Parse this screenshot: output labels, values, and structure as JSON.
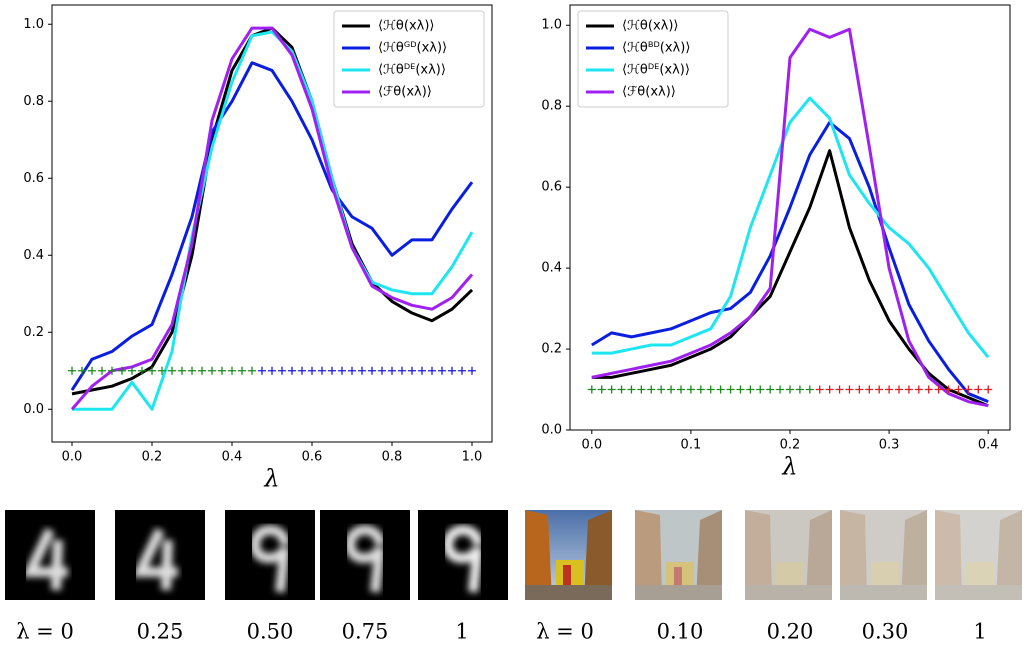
{
  "chart_data": [
    {
      "type": "line",
      "xlabel": "λ",
      "legend": "upper right",
      "xlim": [
        -0.05,
        1.05
      ],
      "ylim": [
        -0.085,
        1.05
      ],
      "xticks": [
        {
          "value": 0,
          "label": "0.0"
        },
        0.2,
        0.4,
        0.6,
        0.8,
        {
          "value": 1,
          "label": "1.0"
        }
      ],
      "yticks": [
        {
          "value": 0,
          "label": "0.0"
        },
        0.2,
        0.4,
        0.6,
        0.8,
        {
          "value": 1,
          "label": "1.0"
        }
      ],
      "x": [
        0,
        0.05,
        0.1,
        0.15,
        0.2,
        0.25,
        0.3,
        0.35,
        0.4,
        0.45,
        0.5,
        0.55,
        0.6,
        0.65,
        0.7,
        0.75,
        0.8,
        0.85,
        0.9,
        0.95,
        1
      ],
      "series": [
        {
          "name": "⟨ℋθ(xλ)⟩",
          "color": "#000000",
          "values": [
            0.04,
            0.05,
            0.06,
            0.08,
            0.11,
            0.2,
            0.4,
            0.7,
            0.88,
            0.97,
            0.99,
            0.94,
            0.8,
            0.6,
            0.43,
            0.33,
            0.28,
            0.25,
            0.23,
            0.26,
            0.31
          ]
        },
        {
          "name": "⟨ℋθᴳᴰ(xλ)⟩",
          "color": "#0a1ee0",
          "values": [
            0.05,
            0.13,
            0.15,
            0.19,
            0.22,
            0.35,
            0.5,
            0.72,
            0.8,
            0.9,
            0.88,
            0.8,
            0.7,
            0.57,
            0.5,
            0.47,
            0.4,
            0.44,
            0.44,
            0.52,
            0.59
          ]
        },
        {
          "name": "⟨ℋθᴰᴱ(xλ)⟩",
          "color": "#1ee6f0",
          "values": [
            0,
            0,
            0,
            0.07,
            0,
            0.15,
            0.45,
            0.68,
            0.85,
            0.97,
            0.98,
            0.93,
            0.8,
            0.6,
            0.42,
            0.33,
            0.31,
            0.3,
            0.3,
            0.37,
            0.46
          ]
        },
        {
          "name": "⟨ℱθ(xλ)⟩",
          "color": "#a020f0",
          "values": [
            0,
            0.06,
            0.1,
            0.11,
            0.13,
            0.22,
            0.43,
            0.75,
            0.91,
            0.99,
            0.99,
            0.92,
            0.78,
            0.58,
            0.42,
            0.32,
            0.29,
            0.27,
            0.26,
            0.29,
            0.35
          ]
        },
        {
          "marker": "+",
          "color": "#1a8a1a",
          "x": [
            0,
            0.025,
            0.05,
            0.075,
            0.1,
            0.125,
            0.15,
            0.175,
            0.2,
            0.225,
            0.25,
            0.275,
            0.3,
            0.325,
            0.35,
            0.375,
            0.4,
            0.425,
            0.45
          ],
          "values": [
            0.1,
            0.1,
            0.1,
            0.1,
            0.1,
            0.1,
            0.1,
            0.1,
            0.1,
            0.1,
            0.1,
            0.1,
            0.1,
            0.1,
            0.1,
            0.1,
            0.1,
            0.1,
            0.1
          ]
        },
        {
          "marker": "+",
          "color": "#1a1ae0",
          "x": [
            0.475,
            0.5,
            0.525,
            0.55,
            0.575,
            0.6,
            0.625,
            0.65,
            0.675,
            0.7,
            0.725,
            0.75,
            0.775,
            0.8,
            0.825,
            0.85,
            0.875,
            0.9,
            0.925,
            0.95,
            0.975,
            1
          ],
          "values": [
            0.1,
            0.1,
            0.1,
            0.1,
            0.1,
            0.1,
            0.1,
            0.1,
            0.1,
            0.1,
            0.1,
            0.1,
            0.1,
            0.1,
            0.1,
            0.1,
            0.1,
            0.1,
            0.1,
            0.1,
            0.1,
            0.1
          ]
        }
      ]
    },
    {
      "type": "line",
      "xlabel": "λ",
      "legend": "upper left",
      "xlim": [
        -0.022,
        0.422
      ],
      "ylim": [
        0,
        1.05
      ],
      "xticks": [
        {
          "value": 0,
          "label": "0.0"
        },
        0.1,
        0.2,
        0.3,
        0.4
      ],
      "yticks": [
        {
          "value": 0,
          "label": "0.0"
        },
        0.2,
        0.4,
        0.6,
        0.8,
        {
          "value": 1,
          "label": "1.0"
        }
      ],
      "x": [
        0,
        0.02,
        0.04,
        0.06,
        0.08,
        0.1,
        0.12,
        0.14,
        0.16,
        0.18,
        0.2,
        0.22,
        0.24,
        0.26,
        0.28,
        0.3,
        0.32,
        0.34,
        0.36,
        0.38,
        0.4
      ],
      "series": [
        {
          "name": "⟨ℋθ(xλ)⟩",
          "color": "#000000",
          "values": [
            0.13,
            0.13,
            0.14,
            0.15,
            0.16,
            0.18,
            0.2,
            0.23,
            0.28,
            0.33,
            0.44,
            0.55,
            0.69,
            0.5,
            0.37,
            0.27,
            0.2,
            0.14,
            0.1,
            0.08,
            0.06
          ]
        },
        {
          "name": "⟨ℋθᴮᴰ(xλ)⟩",
          "color": "#0a1ee0",
          "values": [
            0.21,
            0.24,
            0.23,
            0.24,
            0.25,
            0.27,
            0.29,
            0.3,
            0.34,
            0.43,
            0.55,
            0.68,
            0.76,
            0.72,
            0.6,
            0.45,
            0.31,
            0.22,
            0.15,
            0.09,
            0.07
          ]
        },
        {
          "name": "⟨ℋθᴰᴱ(xλ)⟩",
          "color": "#1ee6f0",
          "values": [
            0.19,
            0.19,
            0.2,
            0.21,
            0.21,
            0.23,
            0.25,
            0.33,
            0.5,
            0.63,
            0.76,
            0.82,
            0.77,
            0.63,
            0.56,
            0.5,
            0.46,
            0.4,
            0.32,
            0.24,
            0.18
          ]
        },
        {
          "name": "⟨ℱθ(xλ)⟩",
          "color": "#a020f0",
          "values": [
            0.13,
            0.14,
            0.15,
            0.16,
            0.17,
            0.19,
            0.21,
            0.24,
            0.28,
            0.35,
            0.92,
            0.99,
            0.97,
            0.99,
            0.7,
            0.4,
            0.22,
            0.13,
            0.09,
            0.07,
            0.06
          ]
        },
        {
          "marker": "+",
          "color": "#1a8a1a",
          "x": [
            0,
            0.01,
            0.02,
            0.03,
            0.04,
            0.05,
            0.06,
            0.07,
            0.08,
            0.09,
            0.1,
            0.11,
            0.12,
            0.13,
            0.14,
            0.15,
            0.16,
            0.17,
            0.18,
            0.19,
            0.2,
            0.21,
            0.22
          ],
          "values": [
            0.1,
            0.1,
            0.1,
            0.1,
            0.1,
            0.1,
            0.1,
            0.1,
            0.1,
            0.1,
            0.1,
            0.1,
            0.1,
            0.1,
            0.1,
            0.1,
            0.1,
            0.1,
            0.1,
            0.1,
            0.1,
            0.1,
            0.1
          ]
        },
        {
          "marker": "+",
          "color": "#e01a1a",
          "x": [
            0.23,
            0.24,
            0.25,
            0.26,
            0.27,
            0.28,
            0.29,
            0.3,
            0.31,
            0.32,
            0.33,
            0.34,
            0.35,
            0.36,
            0.37,
            0.38,
            0.39,
            0.4
          ],
          "values": [
            0.1,
            0.1,
            0.1,
            0.1,
            0.1,
            0.1,
            0.1,
            0.1,
            0.1,
            0.1,
            0.1,
            0.1,
            0.1,
            0.1,
            0.1,
            0.1,
            0.1,
            0.1
          ]
        }
      ]
    }
  ],
  "strip": {
    "captions": [
      "λ = 0",
      "0.25",
      "0.50",
      "0.75",
      "1",
      "λ = 0",
      "0.10",
      "0.20",
      "0.30",
      "1"
    ]
  }
}
